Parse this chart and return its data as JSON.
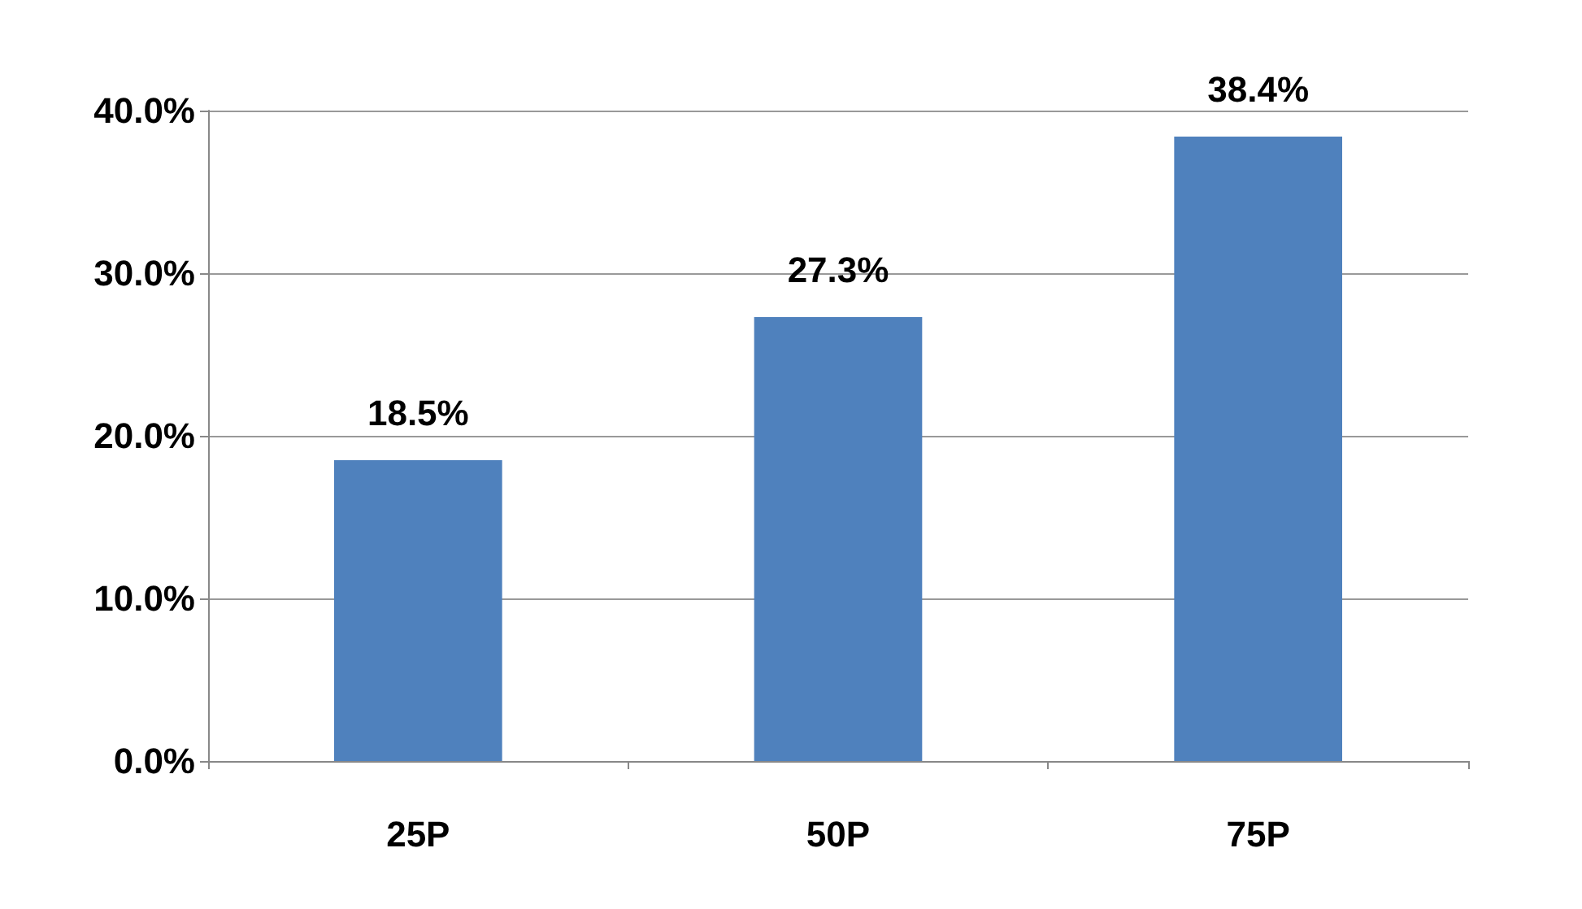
{
  "chart_data": {
    "type": "bar",
    "categories": [
      "25P",
      "50P",
      "75P"
    ],
    "values": [
      18.5,
      27.3,
      38.4
    ],
    "value_labels": [
      "18.5%",
      "27.3%",
      "38.4%"
    ],
    "color": "#4f81bd",
    "ylim": [
      0,
      40
    ],
    "yticks": [
      {
        "value": 0,
        "label": "0.0%"
      },
      {
        "value": 10,
        "label": "10.0%"
      },
      {
        "value": 20,
        "label": "20.0%"
      },
      {
        "value": 30,
        "label": "30.0%"
      },
      {
        "value": 40,
        "label": "40.0%"
      }
    ],
    "grid": "y"
  }
}
